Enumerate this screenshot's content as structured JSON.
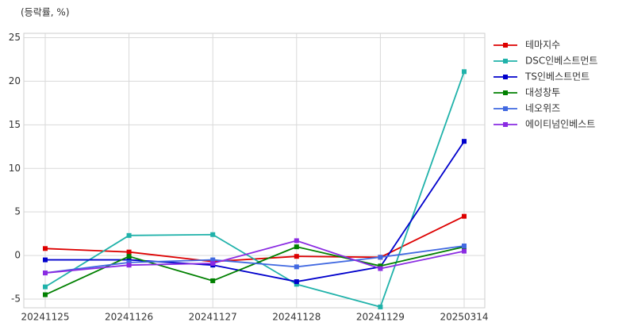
{
  "chart_data": {
    "type": "line",
    "title": "(등락률, %)",
    "categories": [
      "20241125",
      "20241126",
      "20241127",
      "20241128",
      "20241129",
      "20250314"
    ],
    "series": [
      {
        "name": "테마지수",
        "color": "#dd0000",
        "values": [
          0.8,
          0.4,
          -0.7,
          -0.1,
          -0.2,
          4.5
        ]
      },
      {
        "name": "DSC인베스트먼트",
        "color": "#20b2aa",
        "values": [
          -3.6,
          2.3,
          2.4,
          -3.3,
          -5.9,
          21.1
        ]
      },
      {
        "name": "TS인베스트먼트",
        "color": "#0000cc",
        "values": [
          -0.5,
          -0.5,
          -1.1,
          -3.0,
          -1.3,
          13.1
        ]
      },
      {
        "name": "대성창투",
        "color": "#008000",
        "values": [
          -4.5,
          -0.1,
          -2.9,
          1.0,
          -1.2,
          1.0
        ]
      },
      {
        "name": "네오위즈",
        "color": "#4169e1",
        "values": [
          -2.0,
          -0.8,
          -0.5,
          -1.3,
          -0.2,
          1.1
        ]
      },
      {
        "name": "에이티넘인베스트",
        "color": "#8a2be2",
        "values": [
          -2.0,
          -1.1,
          -0.9,
          1.7,
          -1.5,
          0.5
        ]
      }
    ],
    "ylim": [
      -6,
      25.5
    ],
    "yticks": [
      -5,
      0,
      5,
      10,
      15,
      20,
      25
    ],
    "grid": true,
    "legend": "right"
  }
}
